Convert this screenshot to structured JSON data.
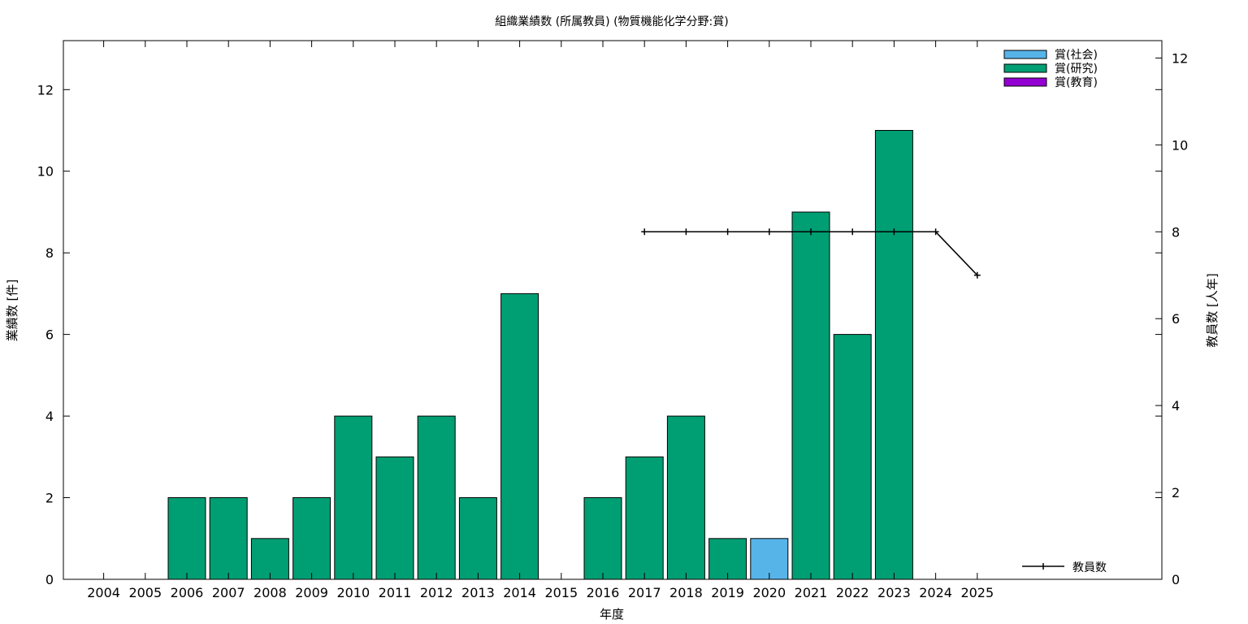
{
  "chart_data": {
    "type": "bar",
    "title": "組織業績数 (所属教員) (物質機能化学分野:賞)",
    "xlabel": "年度",
    "ylabel": "業績数 [件]",
    "y2label": "教員数 [人年]",
    "categories": [
      "2004",
      "2005",
      "2006",
      "2007",
      "2008",
      "2009",
      "2010",
      "2011",
      "2012",
      "2013",
      "2014",
      "2015",
      "2016",
      "2017",
      "2018",
      "2019",
      "2020",
      "2021",
      "2022",
      "2023",
      "2024",
      "2025"
    ],
    "ylim": [
      0,
      13.2
    ],
    "y2lim": [
      0,
      12.4
    ],
    "yticks": [
      0,
      2,
      4,
      6,
      8,
      10,
      12
    ],
    "y2ticks": [
      0,
      2,
      4,
      6,
      8,
      10,
      12
    ],
    "legend_position": "top-right",
    "series": [
      {
        "name": "賞(社会)",
        "color": "#56b4e9",
        "values": [
          0,
          0,
          0,
          0,
          0,
          0,
          0,
          0,
          0,
          0,
          0,
          0,
          0,
          0,
          0,
          0,
          1,
          0,
          0,
          0,
          0,
          0
        ]
      },
      {
        "name": "賞(研究)",
        "color": "#009e73",
        "values": [
          0,
          0,
          2,
          2,
          1,
          2,
          4,
          3,
          4,
          2,
          7,
          0,
          2,
          3,
          4,
          1,
          0,
          9,
          6,
          11,
          0,
          0
        ]
      },
      {
        "name": "賞(教育)",
        "color": "#9400d3",
        "values": [
          0,
          0,
          0,
          0,
          0,
          0,
          0,
          0,
          0,
          0,
          0,
          0,
          0,
          0,
          0,
          0,
          0,
          0,
          0,
          0,
          0,
          0
        ]
      }
    ],
    "line_series": {
      "name": "教員数",
      "color": "#000000",
      "axis": "y2",
      "x": [
        "2017",
        "2018",
        "2019",
        "2020",
        "2021",
        "2022",
        "2023",
        "2024",
        "2025"
      ],
      "values": [
        8,
        8,
        8,
        8,
        8,
        8,
        8,
        8,
        7
      ]
    }
  }
}
